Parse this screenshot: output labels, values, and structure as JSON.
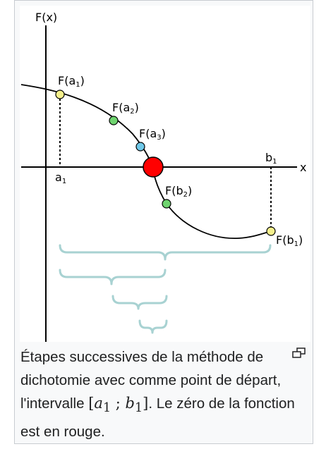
{
  "figure": {
    "axis_y_label": "F(x)",
    "axis_x_label": "x",
    "labels": {
      "fa1": {
        "main": "F(a",
        "sub": "1",
        "close": ")"
      },
      "fa2": {
        "main": "F(a",
        "sub": "2",
        "close": ")"
      },
      "fa3": {
        "main": "F(a",
        "sub": "3",
        "close": ")"
      },
      "fb1": {
        "main": "F(b",
        "sub": "1",
        "close": ")"
      },
      "fb2": {
        "main": "F(b",
        "sub": "2",
        "close": ")"
      },
      "a1": {
        "main": "a",
        "sub": "1"
      },
      "b1": {
        "main": "b",
        "sub": "1"
      }
    },
    "colors": {
      "fa1": "#f5f08c",
      "fa2": "#6fd46f",
      "fa3": "#6fc8e8",
      "root": "#ff0000",
      "fb2": "#6fd46f",
      "fb1": "#f5f08c",
      "brace": "#a8d2d2"
    }
  },
  "caption": {
    "part1": "Étapes successives de la méthode de dichotomie avec comme point de départ, l'intervalle ",
    "interval_open": "[",
    "a": "a",
    "a_sub": "1",
    "sep": " ; ",
    "b": "b",
    "b_sub": "1",
    "interval_close": "]",
    "part2": ". Le zéro de la fonction est en rouge."
  },
  "magnify_icon": "magnify-clip-icon"
}
